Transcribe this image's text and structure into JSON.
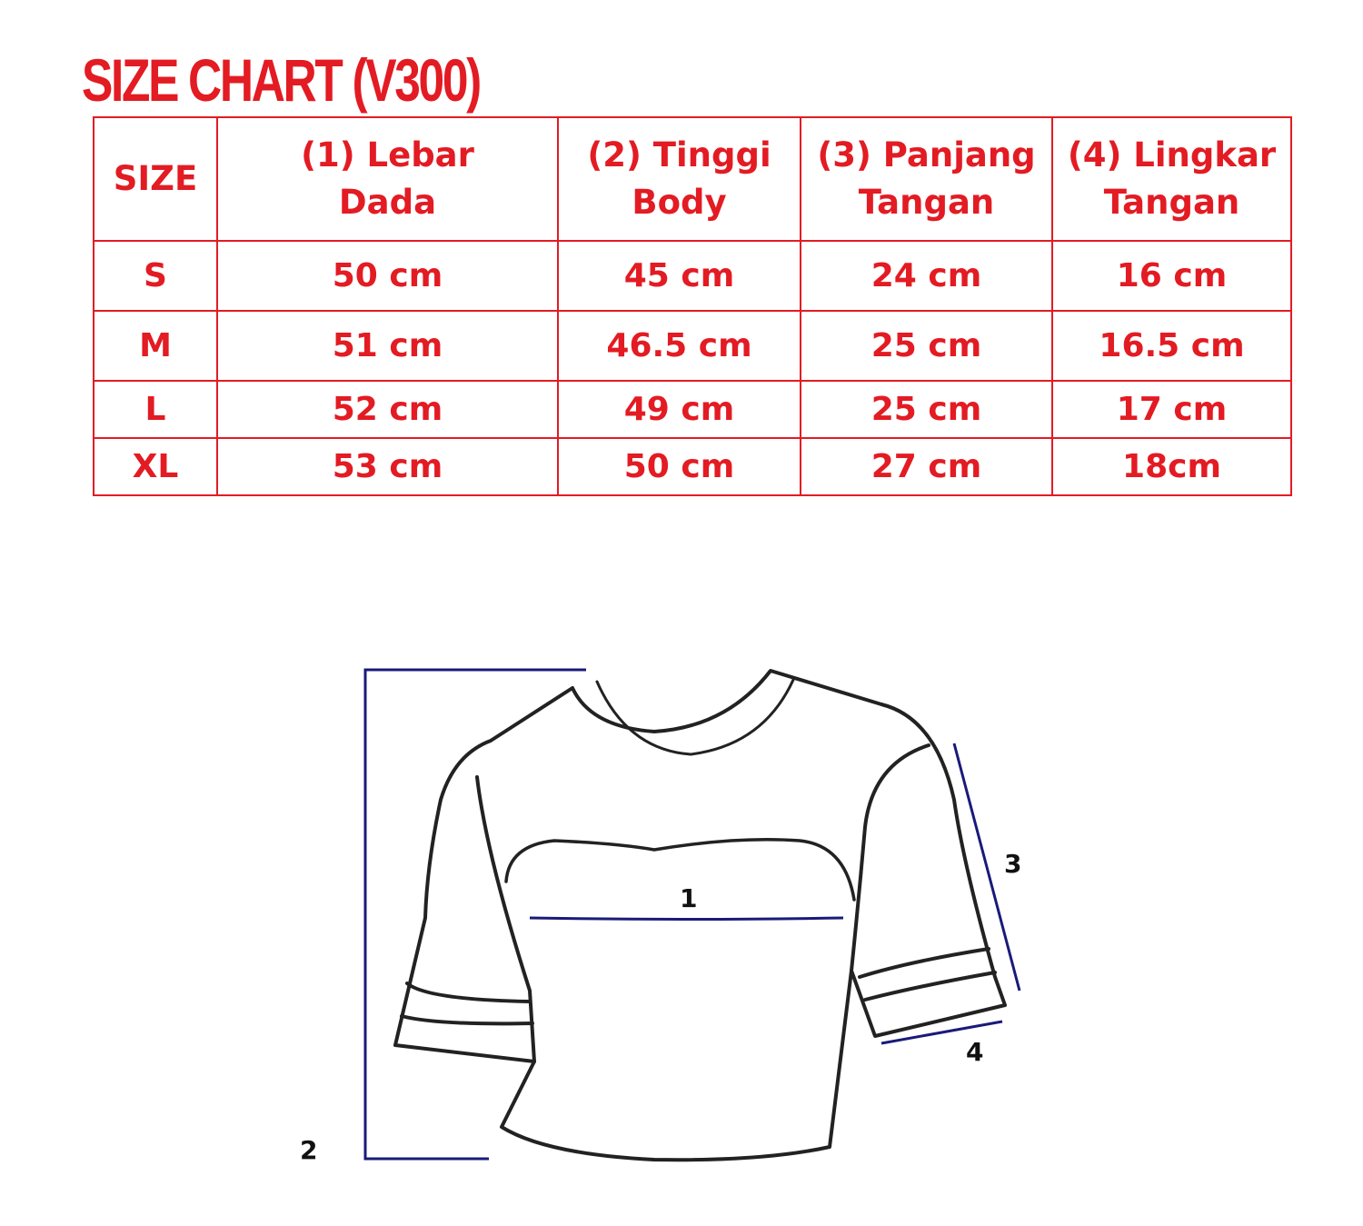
{
  "title": "SIZE CHART (V300)",
  "table": {
    "headers": [
      "SIZE",
      "(1) Lebar Dada",
      "(2) Tinggi Body",
      "(3) Panjang Tangan",
      "(4) Lingkar Tangan"
    ],
    "header_lines": [
      [
        "SIZE"
      ],
      [
        "(1) Lebar",
        "Dada"
      ],
      [
        "(2) Tinggi",
        "Body"
      ],
      [
        "(3) Panjang",
        "Tangan"
      ],
      [
        "(4) Lingkar",
        "Tangan"
      ]
    ],
    "rows": [
      [
        "S",
        "50 cm",
        "45 cm",
        "24 cm",
        "16 cm"
      ],
      [
        "M",
        "51 cm",
        "46.5 cm",
        "25 cm",
        "16.5 cm"
      ],
      [
        "L",
        "52 cm",
        "49 cm",
        "25 cm",
        "17 cm"
      ],
      [
        "XL",
        "53 cm",
        "50 cm",
        "27 cm",
        "18cm"
      ]
    ]
  },
  "diagram": {
    "labels": [
      "1",
      "2",
      "3",
      "4"
    ]
  },
  "colors": {
    "accent": "#e31b23",
    "measure_line": "#1a1a7a",
    "outline": "#222222"
  }
}
